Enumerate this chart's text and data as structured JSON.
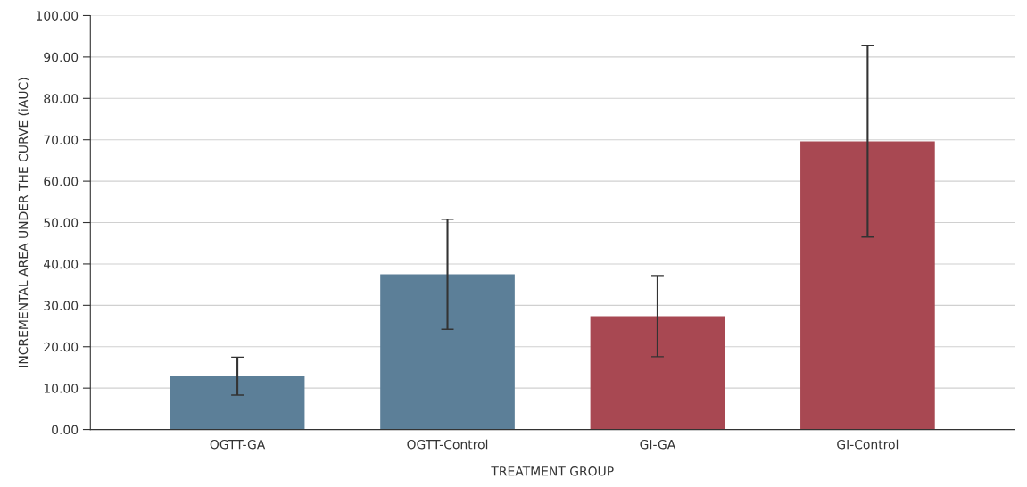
{
  "chart_data": {
    "type": "bar",
    "xlabel": "TREATMENT GROUP",
    "ylabel": "INCREMENTAL AREA UNDER THE CURVE (iAUC)",
    "categories": [
      "OGTT-GA",
      "OGTT-Control",
      "GI-GA",
      "GI-Control"
    ],
    "values": [
      12.9,
      37.5,
      27.4,
      69.6
    ],
    "errors": [
      4.6,
      13.3,
      9.8,
      23.1
    ],
    "colors": [
      "#5c7f98",
      "#5c7f98",
      "#a84852",
      "#a84852"
    ],
    "ylim": [
      0,
      100
    ],
    "yticks": [
      {
        "value": 0,
        "label": "0.00"
      },
      {
        "value": 10,
        "label": "10.00"
      },
      {
        "value": 20,
        "label": "20.00"
      },
      {
        "value": 30,
        "label": "30.00"
      },
      {
        "value": 40,
        "label": "40.00"
      },
      {
        "value": 50,
        "label": "50.00"
      },
      {
        "value": 60,
        "label": "60.00"
      },
      {
        "value": 70,
        "label": "70.00"
      },
      {
        "value": 80,
        "label": "80.00"
      },
      {
        "value": 90,
        "label": "90.00"
      },
      {
        "value": 100,
        "label": "100.00"
      }
    ],
    "grid": "y",
    "legend": false
  }
}
